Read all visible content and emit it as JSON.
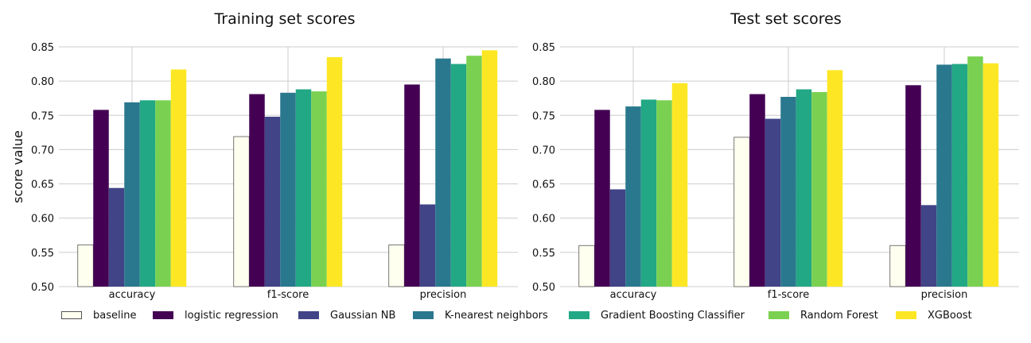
{
  "chart_data": [
    {
      "type": "bar",
      "title": "Training set scores",
      "ylabel": "score value",
      "xlabel": "",
      "ylim": [
        0.5,
        0.85
      ],
      "yticks": [
        "0.50",
        "0.55",
        "0.60",
        "0.65",
        "0.70",
        "0.75",
        "0.80",
        "0.85"
      ],
      "grid": true,
      "categories": [
        "accuracy",
        "f1-score",
        "precision"
      ],
      "series": [
        {
          "name": "baseline",
          "values": [
            0.561,
            0.719,
            0.561
          ]
        },
        {
          "name": "logistic regression",
          "values": [
            0.758,
            0.781,
            0.795
          ]
        },
        {
          "name": "Gaussian NB",
          "values": [
            0.644,
            0.748,
            0.62
          ]
        },
        {
          "name": "K-nearest neighbors",
          "values": [
            0.769,
            0.783,
            0.833
          ]
        },
        {
          "name": "Gradient Boosting Classifier",
          "values": [
            0.772,
            0.788,
            0.825
          ]
        },
        {
          "name": "Random Forest",
          "values": [
            0.772,
            0.785,
            0.837
          ]
        },
        {
          "name": "XGBoost",
          "values": [
            0.817,
            0.835,
            0.845
          ]
        }
      ]
    },
    {
      "type": "bar",
      "title": "Test set scores",
      "ylabel": "",
      "xlabel": "",
      "ylim": [
        0.5,
        0.85
      ],
      "yticks": [
        "0.50",
        "0.55",
        "0.60",
        "0.65",
        "0.70",
        "0.75",
        "0.80",
        "0.85"
      ],
      "grid": true,
      "categories": [
        "accuracy",
        "f1-score",
        "precision"
      ],
      "series": [
        {
          "name": "baseline",
          "values": [
            0.56,
            0.718,
            0.56
          ]
        },
        {
          "name": "logistic regression",
          "values": [
            0.758,
            0.781,
            0.794
          ]
        },
        {
          "name": "Gaussian NB",
          "values": [
            0.642,
            0.745,
            0.619
          ]
        },
        {
          "name": "K-nearest neighbors",
          "values": [
            0.763,
            0.777,
            0.824
          ]
        },
        {
          "name": "Gradient Boosting Classifier",
          "values": [
            0.773,
            0.788,
            0.825
          ]
        },
        {
          "name": "Random Forest",
          "values": [
            0.772,
            0.784,
            0.836
          ]
        },
        {
          "name": "XGBoost",
          "values": [
            0.797,
            0.816,
            0.826
          ]
        }
      ]
    }
  ],
  "colors": [
    "#fffff0",
    "#440154",
    "#414487",
    "#2a788e",
    "#22a884",
    "#7ad151",
    "#fde725"
  ],
  "baseline_edge_color": "#555555",
  "legend": {
    "placement": "bottom",
    "items": [
      "baseline",
      "logistic regression",
      "Gaussian NB",
      "K-nearest neighbors",
      "Gradient Boosting Classifier",
      "Random Forest",
      "XGBoost"
    ]
  }
}
